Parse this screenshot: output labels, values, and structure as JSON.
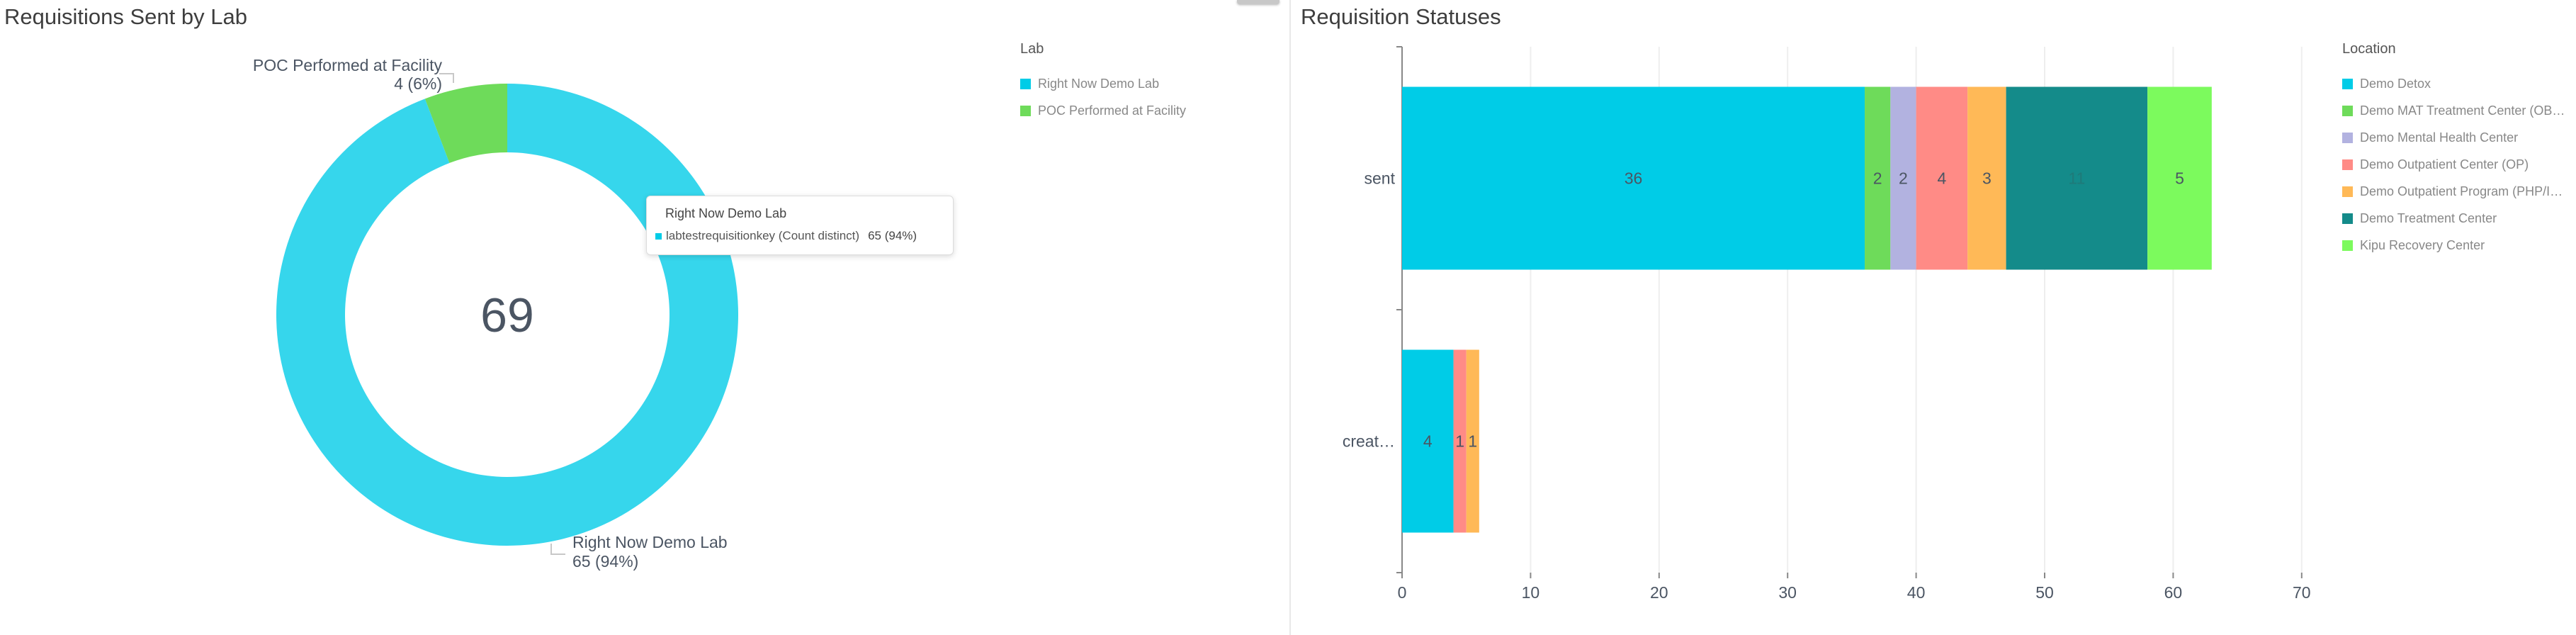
{
  "colors": {
    "cyan": "#00CCE7",
    "green": "#6EDB5A",
    "lavender": "#B2B2E0",
    "salmon": "#FF8B86",
    "orange": "#FFB957",
    "teal": "#148B8A",
    "lime": "#7CFA5D"
  },
  "left_panel": {
    "title": "Requisitions Sent by Lab",
    "center_total": "69",
    "legend_title": "Lab",
    "tooltip": {
      "title": "Right Now Demo Lab",
      "metric": "labtestrequisitionkey (Count distinct)",
      "value": "65 (94%)"
    }
  },
  "right_panel": {
    "title": "Requisition Statuses",
    "legend_title": "Location"
  },
  "chart_data": [
    {
      "type": "pie",
      "title": "Requisitions Sent by Lab",
      "legend_position": "right",
      "slices": [
        {
          "label": "Right Now Demo Lab",
          "value": 65,
          "percent": "65 (94%)",
          "color": "#36D6EC"
        },
        {
          "label": "POC Performed at Facility",
          "value": 4,
          "percent": "4 (6%)",
          "color": "#6EDB5A"
        }
      ]
    },
    {
      "type": "bar",
      "orientation": "horizontal",
      "stacked": true,
      "title": "Requisition Statuses",
      "legend_position": "right",
      "categories": [
        "sent",
        "creat…"
      ],
      "xlim": [
        0,
        70
      ],
      "x_ticks": [
        0,
        10,
        20,
        30,
        40,
        50,
        60,
        70
      ],
      "grid": true,
      "series": [
        {
          "name": "Demo Detox",
          "color": "#00CCE7",
          "values": [
            36,
            4
          ]
        },
        {
          "name": "Demo MAT Treatment Center (OB…",
          "color": "#6EDB5A",
          "values": [
            2,
            0
          ]
        },
        {
          "name": "Demo Mental Health Center",
          "color": "#B2B2E0",
          "values": [
            2,
            0
          ]
        },
        {
          "name": "Demo Outpatient Center (OP)",
          "color": "#FF8B86",
          "values": [
            4,
            1
          ]
        },
        {
          "name": "Demo Outpatient Program (PHP/I…",
          "color": "#FFB957",
          "values": [
            3,
            1
          ]
        },
        {
          "name": "Demo Treatment Center",
          "color": "#148B8A",
          "values": [
            11,
            0
          ]
        },
        {
          "name": "Kipu Recovery Center",
          "color": "#7CFA5D",
          "values": [
            5,
            0
          ]
        }
      ]
    }
  ]
}
